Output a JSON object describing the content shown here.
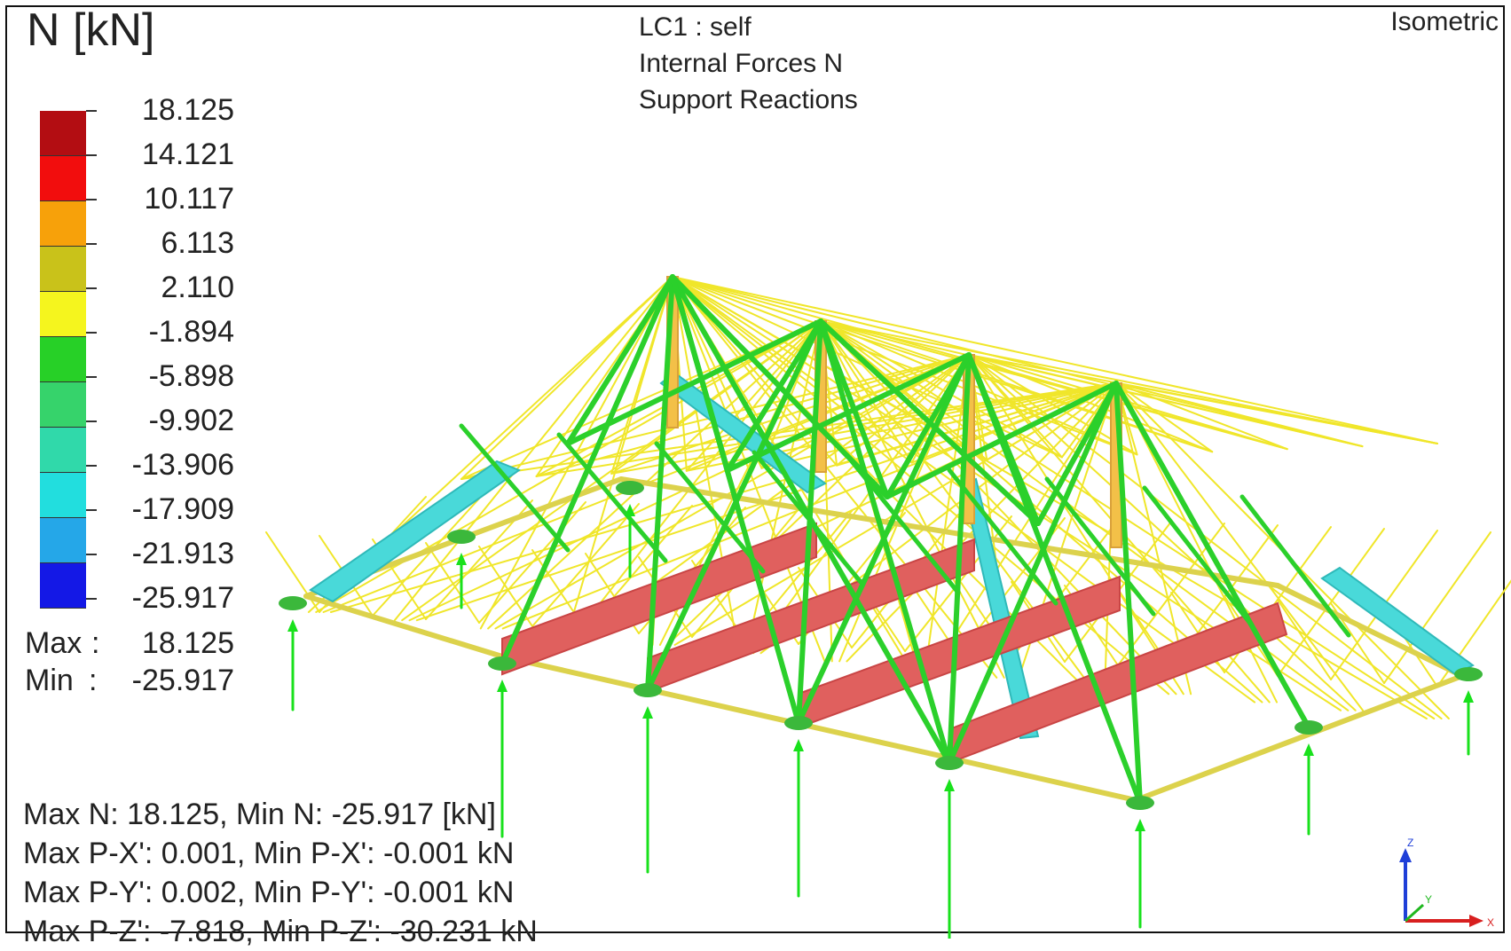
{
  "result_title": "N [kN]",
  "load_case": [
    "LC1 : self",
    "Internal Forces N",
    "Support Reactions"
  ],
  "view_label": "Isometric",
  "legend": {
    "values": [
      "18.125",
      "14.121",
      "10.117",
      "6.113",
      "2.110",
      "-1.894",
      "-5.898",
      "-9.902",
      "-13.906",
      "-17.909",
      "-21.913",
      "-25.917"
    ],
    "colors": [
      "#b30d12",
      "#f20d0d",
      "#f7a10a",
      "#c9c21a",
      "#f5f51e",
      "#27d027",
      "#36d36b",
      "#30d9aa",
      "#22dede",
      "#25a7e8",
      "#1418e6",
      "#0c1299"
    ],
    "max_label": "Max",
    "max_sep": ":",
    "max_value": "18.125",
    "min_label": "Min",
    "min_sep": ":",
    "min_value": "-25.917"
  },
  "summary": [
    "Max N: 18.125, Min N: -25.917 [kN]",
    "Max P-X': 0.001, Min P-X': -0.001 kN",
    "Max P-Y': 0.002, Min P-Y': -0.001 kN",
    "Max P-Z': -7.818, Min P-Z': -30.231 kN"
  ],
  "axis_labels": {
    "z": "Z",
    "y": "Y",
    "x": "X"
  },
  "model_colors": {
    "tension_ridge": "#c94545",
    "tension_fill": "#e0605e",
    "brace": "#2bd02b",
    "lattice": "#f0e62a",
    "tie": "#dcd24c",
    "cyan_member": "#49d9d9",
    "post": "#f3c048",
    "reaction": "#19e11c",
    "support": "#3bb83b"
  }
}
